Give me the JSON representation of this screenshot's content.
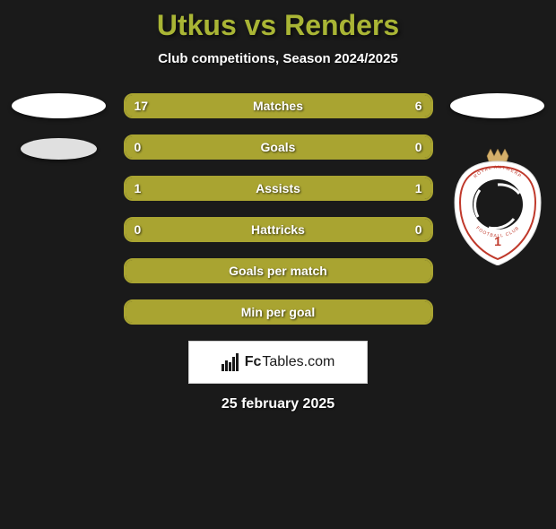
{
  "title": "Utkus vs Renders",
  "title_color": "#a9b535",
  "subtitle": "Club competitions, Season 2024/2025",
  "background_color": "#1a1a1a",
  "bar_border_color": "#a9a431",
  "bar_fill_color": "#a9a431",
  "stats": [
    {
      "label": "Matches",
      "left_value": "17",
      "right_value": "6",
      "left_pct": 74,
      "right_pct": 26,
      "show_values": true,
      "fill_full": false
    },
    {
      "label": "Goals",
      "left_value": "0",
      "right_value": "0",
      "left_pct": 0,
      "right_pct": 0,
      "show_values": true,
      "fill_full": true
    },
    {
      "label": "Assists",
      "left_value": "1",
      "right_value": "1",
      "left_pct": 50,
      "right_pct": 50,
      "show_values": true,
      "fill_full": false
    },
    {
      "label": "Hattricks",
      "left_value": "0",
      "right_value": "0",
      "left_pct": 0,
      "right_pct": 0,
      "show_values": true,
      "fill_full": true
    },
    {
      "label": "Goals per match",
      "left_value": "",
      "right_value": "",
      "left_pct": 0,
      "right_pct": 0,
      "show_values": false,
      "fill_full": true
    },
    {
      "label": "Min per goal",
      "left_value": "",
      "right_value": "",
      "left_pct": 0,
      "right_pct": 0,
      "show_values": false,
      "fill_full": true
    }
  ],
  "logo": {
    "text_prefix": "Fc",
    "text_suffix": "Tables.com",
    "text_color": "#1a1a1a",
    "box_bg": "#ffffff"
  },
  "date": "25 february 2025",
  "crest": {
    "outer_color": "#ffffff",
    "ring_border": "#c0392b",
    "inner_color": "#1a1a1a",
    "number": "1",
    "crown_color": "#d4af6a",
    "top_arc_text": "ROYAL ANTWERP",
    "bottom_arc_text": "FOOTBALL CLUB"
  }
}
